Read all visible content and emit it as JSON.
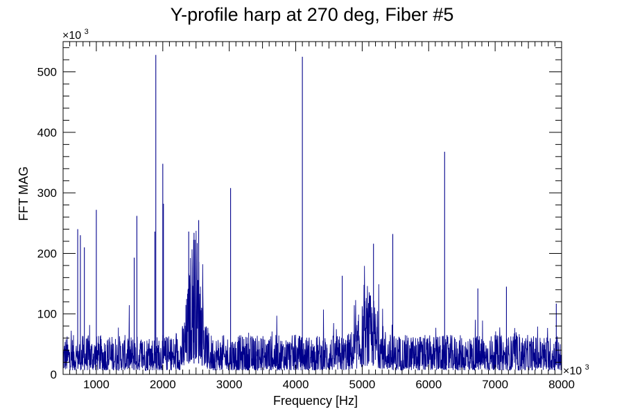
{
  "chart_data": {
    "type": "line",
    "title": "Y-profile harp at 270 deg, Fiber #5",
    "xlabel": "Frequency [Hz]",
    "ylabel": "FFT MAG",
    "x_multiplier_label": "×10³",
    "y_multiplier_label": "×10³",
    "x_multiplier_text": "×10",
    "x_multiplier_exp": "3",
    "y_multiplier_text": "×10",
    "y_multiplier_exp": "3",
    "xlim": [
      500,
      8000
    ],
    "ylim": [
      0,
      550
    ],
    "x_ticks": [
      1000,
      2000,
      3000,
      4000,
      5000,
      6000,
      7000,
      8000
    ],
    "x_tick_labels": [
      "1000",
      "2000",
      "3000",
      "4000",
      "5000",
      "6000",
      "7000",
      "8000"
    ],
    "y_ticks": [
      0,
      100,
      200,
      300,
      400,
      500
    ],
    "y_tick_labels": [
      "0",
      "100",
      "200",
      "300",
      "400",
      "500"
    ],
    "grid": false,
    "series_color": "#00008b",
    "series": [
      {
        "noise_baseline": 45,
        "peaks": [
          {
            "x": 720,
            "y": 240
          },
          {
            "x": 760,
            "y": 230
          },
          {
            "x": 820,
            "y": 210
          },
          {
            "x": 1000,
            "y": 272
          },
          {
            "x": 1570,
            "y": 193
          },
          {
            "x": 1610,
            "y": 262
          },
          {
            "x": 1880,
            "y": 236
          },
          {
            "x": 1895,
            "y": 528
          },
          {
            "x": 2000,
            "y": 348
          },
          {
            "x": 2010,
            "y": 282
          },
          {
            "x": 2390,
            "y": 236
          },
          {
            "x": 2470,
            "y": 234
          },
          {
            "x": 2540,
            "y": 255
          },
          {
            "x": 3020,
            "y": 308
          },
          {
            "x": 4100,
            "y": 525
          },
          {
            "x": 4700,
            "y": 163
          },
          {
            "x": 5170,
            "y": 216
          },
          {
            "x": 5460,
            "y": 232
          },
          {
            "x": 6240,
            "y": 368
          },
          {
            "x": 6740,
            "y": 142
          },
          {
            "x": 7170,
            "y": 145
          },
          {
            "x": 7920,
            "y": 117
          }
        ],
        "broad_bumps": [
          {
            "center": 2480,
            "width": 120,
            "level": 130
          },
          {
            "center": 5100,
            "width": 180,
            "level": 50
          }
        ]
      }
    ]
  }
}
